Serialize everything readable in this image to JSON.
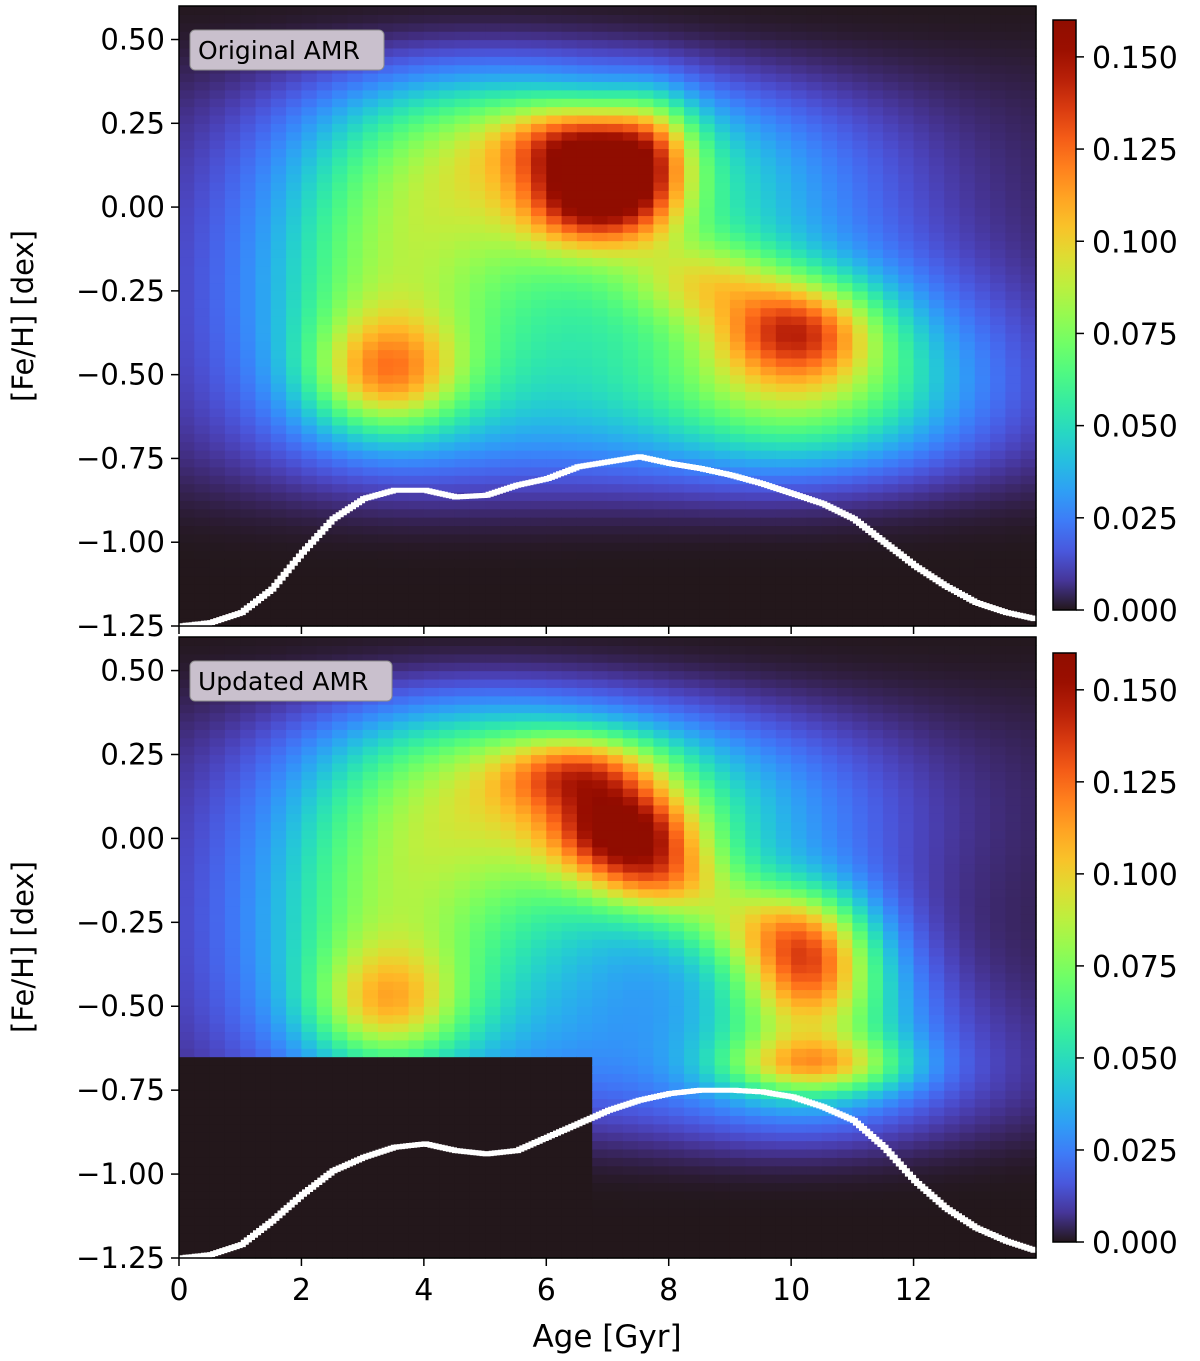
{
  "chart_data": [
    {
      "type": "heatmap",
      "panel_label": "Original AMR",
      "xlabel": "",
      "ylabel": "[Fe/H] [dex]",
      "xlim": [
        0,
        14
      ],
      "ylim": [
        -1.25,
        0.6
      ],
      "x_ticks": [
        0,
        2,
        4,
        6,
        8,
        10,
        12
      ],
      "y_ticks": [
        0.5,
        0.25,
        0.0,
        -0.25,
        -0.5,
        -0.75,
        -1.0,
        -1.25
      ],
      "y_tick_labels": [
        "0.50",
        "0.25",
        "0.00",
        "−0.25",
        "−0.50",
        "−0.75",
        "−1.00",
        "−1.25"
      ],
      "show_x_tick_labels": false,
      "colorbar": {
        "range": [
          0,
          0.16
        ],
        "colormap": "turbo",
        "ticks": [
          0.15,
          0.125,
          0.1,
          0.075,
          0.05,
          0.025,
          0.0
        ],
        "tick_labels": [
          "0.150",
          "0.125",
          "0.100",
          "0.075",
          "0.050",
          "0.025",
          "0.000"
        ]
      },
      "density_blobs": [
        {
          "age": 6.8,
          "feh": 0.03,
          "sx": 0.75,
          "sy": 0.1,
          "amp": 0.085
        },
        {
          "age": 6.6,
          "feh": 0.2,
          "sx": 0.9,
          "sy": 0.08,
          "amp": 0.06
        },
        {
          "age": 7.7,
          "feh": 0.15,
          "sx": 0.5,
          "sy": 0.14,
          "amp": 0.045
        },
        {
          "age": 7.2,
          "feh": 0.08,
          "sx": 2.6,
          "sy": 0.22,
          "amp": 0.05
        },
        {
          "age": 10.1,
          "feh": -0.36,
          "sx": 0.85,
          "sy": 0.1,
          "amp": 0.065
        },
        {
          "age": 10.2,
          "feh": -0.5,
          "sx": 1.6,
          "sy": 0.2,
          "amp": 0.055
        },
        {
          "age": 8.6,
          "feh": -0.22,
          "sx": 0.9,
          "sy": 0.09,
          "amp": 0.04
        },
        {
          "age": 3.4,
          "feh": -0.5,
          "sx": 0.85,
          "sy": 0.12,
          "amp": 0.06
        },
        {
          "age": 3.3,
          "feh": -0.25,
          "sx": 1.2,
          "sy": 0.3,
          "amp": 0.035
        },
        {
          "age": 4.5,
          "feh": -0.3,
          "sx": 2.6,
          "sy": 0.4,
          "amp": 0.04
        },
        {
          "age": 9.5,
          "feh": -0.55,
          "sx": 2.8,
          "sy": 0.25,
          "amp": 0.03
        },
        {
          "age": 5.0,
          "feh": 0.25,
          "sx": 1.8,
          "sy": 0.2,
          "amp": 0.035
        }
      ],
      "amr_curve": {
        "age": [
          0,
          0.5,
          1.0,
          1.5,
          2.0,
          2.5,
          3.0,
          3.5,
          4.0,
          4.5,
          5.0,
          5.5,
          6.0,
          6.5,
          7.0,
          7.5,
          8.0,
          8.5,
          9.0,
          9.5,
          10.0,
          10.5,
          11.0,
          11.5,
          12.0,
          12.5,
          13.0,
          13.5,
          14.0
        ],
        "feh": [
          -1.25,
          -1.24,
          -1.21,
          -1.14,
          -1.03,
          -0.93,
          -0.87,
          -0.845,
          -0.845,
          -0.865,
          -0.86,
          -0.83,
          -0.81,
          -0.775,
          -0.76,
          -0.745,
          -0.765,
          -0.78,
          -0.8,
          -0.825,
          -0.855,
          -0.885,
          -0.93,
          -1.0,
          -1.07,
          -1.13,
          -1.18,
          -1.21,
          -1.23
        ]
      }
    },
    {
      "type": "heatmap",
      "panel_label": "Updated AMR",
      "xlabel": "Age [Gyr]",
      "ylabel": "[Fe/H] [dex]",
      "xlim": [
        0,
        14
      ],
      "ylim": [
        -1.25,
        0.6
      ],
      "x_ticks": [
        0,
        2,
        4,
        6,
        8,
        10,
        12
      ],
      "x_tick_labels": [
        "0",
        "2",
        "4",
        "6",
        "8",
        "10",
        "12"
      ],
      "y_ticks": [
        0.5,
        0.25,
        0.0,
        -0.25,
        -0.5,
        -0.75,
        -1.0,
        -1.25
      ],
      "y_tick_labels": [
        "0.50",
        "0.25",
        "0.00",
        "−0.25",
        "−0.50",
        "−0.75",
        "−1.00",
        "−1.25"
      ],
      "show_x_tick_labels": true,
      "colorbar": {
        "range": [
          0,
          0.16
        ],
        "colormap": "turbo",
        "ticks": [
          0.15,
          0.125,
          0.1,
          0.075,
          0.05,
          0.025,
          0.0
        ],
        "tick_labels": [
          "0.150",
          "0.125",
          "0.100",
          "0.075",
          "0.050",
          "0.025",
          "0.000"
        ]
      },
      "density_blobs": [
        {
          "age": 7.3,
          "feh": 0.02,
          "sx": 0.8,
          "sy": 0.09,
          "amp": 0.085
        },
        {
          "age": 6.6,
          "feh": 0.2,
          "sx": 0.9,
          "sy": 0.08,
          "amp": 0.06
        },
        {
          "age": 7.9,
          "feh": -0.12,
          "sx": 0.8,
          "sy": 0.08,
          "amp": 0.05
        },
        {
          "age": 7.2,
          "feh": 0.08,
          "sx": 2.6,
          "sy": 0.22,
          "amp": 0.05
        },
        {
          "age": 10.3,
          "feh": -0.35,
          "sx": 0.7,
          "sy": 0.12,
          "amp": 0.065
        },
        {
          "age": 10.4,
          "feh": -0.68,
          "sx": 1.0,
          "sy": 0.06,
          "amp": 0.06
        },
        {
          "age": 10.3,
          "feh": -0.5,
          "sx": 1.1,
          "sy": 0.2,
          "amp": 0.06
        },
        {
          "age": 9.3,
          "feh": -0.25,
          "sx": 0.9,
          "sy": 0.09,
          "amp": 0.04
        },
        {
          "age": 3.4,
          "feh": -0.5,
          "sx": 0.85,
          "sy": 0.12,
          "amp": 0.05
        },
        {
          "age": 3.3,
          "feh": -0.25,
          "sx": 1.2,
          "sy": 0.3,
          "amp": 0.035
        },
        {
          "age": 4.5,
          "feh": -0.3,
          "sx": 2.6,
          "sy": 0.4,
          "amp": 0.04
        },
        {
          "age": 5.0,
          "feh": 0.25,
          "sx": 1.8,
          "sy": 0.2,
          "amp": 0.035
        },
        {
          "age": 10.0,
          "feh": -0.72,
          "sx": 2.5,
          "sy": 0.2,
          "amp": 0.02
        },
        {
          "age": 10.0,
          "feh": -0.95,
          "sx": 1.8,
          "sy": 0.16,
          "amp": 0.02
        }
      ],
      "cutoff": {
        "age_lt": 6.8,
        "feh_lt": -0.65
      },
      "amr_curve": {
        "age": [
          0,
          0.5,
          1.0,
          1.5,
          2.0,
          2.5,
          3.0,
          3.5,
          4.0,
          4.5,
          5.0,
          5.5,
          6.0,
          6.5,
          7.0,
          7.5,
          8.0,
          8.5,
          9.0,
          9.5,
          10.0,
          10.5,
          11.0,
          11.5,
          12.0,
          12.5,
          13.0,
          13.5,
          14.0
        ],
        "feh": [
          -1.25,
          -1.24,
          -1.21,
          -1.14,
          -1.06,
          -0.99,
          -0.95,
          -0.92,
          -0.91,
          -0.93,
          -0.94,
          -0.93,
          -0.89,
          -0.85,
          -0.81,
          -0.78,
          -0.76,
          -0.75,
          -0.75,
          -0.755,
          -0.77,
          -0.8,
          -0.84,
          -0.92,
          -1.02,
          -1.1,
          -1.16,
          -1.2,
          -1.23
        ]
      }
    }
  ]
}
